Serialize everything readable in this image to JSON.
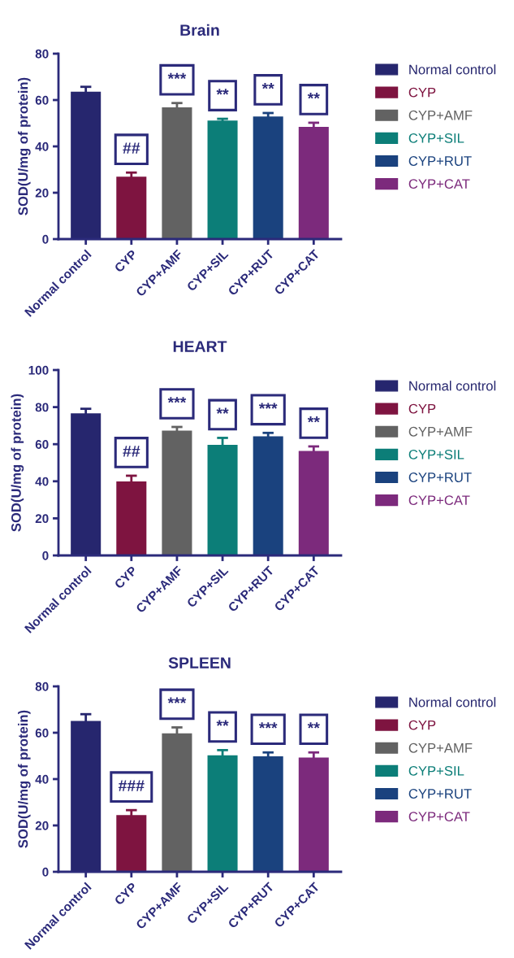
{
  "chart_data": [
    {
      "type": "bar",
      "title": "Brain",
      "ylabel": "SOD(U/mg of protein)",
      "categories": [
        "Normal control",
        "CYP",
        "CYP+AMF",
        "CYP+SIL",
        "CYP+RUT",
        "CYP+CAT"
      ],
      "values": [
        63.6,
        26.9,
        56.8,
        51.1,
        52.9,
        48.4
      ],
      "errors": [
        2.1,
        1.8,
        1.9,
        0.8,
        1.5,
        1.8
      ],
      "colors": [
        "#26266e",
        "#7e1440",
        "#626262",
        "#0c7e78",
        "#1a427e",
        "#7c2a7c"
      ],
      "ylim": [
        0,
        80
      ],
      "yticks": [
        0,
        20,
        40,
        60,
        80
      ],
      "grid": false,
      "annotations": [
        "##",
        "***",
        "**",
        "**",
        "**"
      ]
    },
    {
      "type": "bar",
      "title": "HEART",
      "ylabel": "SOD(U/mg of protein)",
      "categories": [
        "Normal control",
        "CYP",
        "CYP+AMF",
        "CYP+SIL",
        "CYP+RUT",
        "CYP+CAT"
      ],
      "values": [
        76.6,
        39.9,
        67.3,
        59.6,
        64.3,
        56.4
      ],
      "errors": [
        2.5,
        3.1,
        2.0,
        3.8,
        1.8,
        2.4
      ],
      "colors": [
        "#26266e",
        "#7e1440",
        "#626262",
        "#0c7e78",
        "#1a427e",
        "#7c2a7c"
      ],
      "ylim": [
        0,
        100
      ],
      "yticks": [
        0,
        20,
        40,
        60,
        80,
        100
      ],
      "grid": false,
      "annotations": [
        "##",
        "***",
        "**",
        "***",
        "**"
      ]
    },
    {
      "type": "bar",
      "title": "SPLEEN",
      "ylabel": "SOD(U/mg of protein)",
      "categories": [
        "Normal control",
        "CYP",
        "CYP+AMF",
        "CYP+SIL",
        "CYP+RUT",
        "CYP+CAT"
      ],
      "values": [
        65.1,
        24.5,
        59.7,
        50.3,
        49.8,
        49.3
      ],
      "errors": [
        2.9,
        2.1,
        2.6,
        2.2,
        1.7,
        2.2
      ],
      "colors": [
        "#26266e",
        "#7e1440",
        "#626262",
        "#0c7e78",
        "#1a427e",
        "#7c2a7c"
      ],
      "ylim": [
        0,
        80
      ],
      "yticks": [
        0,
        20,
        40,
        60,
        80
      ],
      "grid": false,
      "annotations": [
        "###",
        "***",
        "**",
        "***",
        "**"
      ]
    }
  ]
}
